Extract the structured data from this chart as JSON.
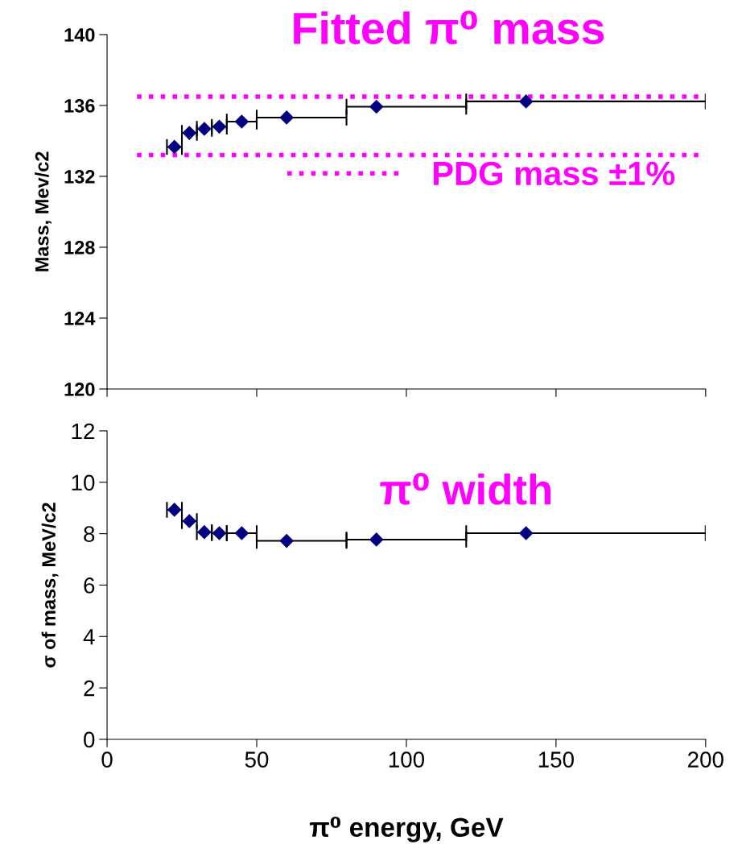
{
  "chart_data": [
    {
      "type": "scatter",
      "title": "Fitted π⁰ mass",
      "ylabel": "Mass, Mev/c2",
      "x": [
        22.5,
        27.5,
        32.5,
        37.5,
        45,
        60,
        90,
        140
      ],
      "series": [
        {
          "color": "#000080",
          "values": [
            133.66,
            134.45,
            134.68,
            134.8,
            135.09,
            135.32,
            135.93,
            136.23
          ],
          "xerrors": [
            [
              20,
              25
            ],
            [
              25,
              30
            ],
            [
              30,
              35
            ],
            [
              35,
              40
            ],
            [
              40,
              50
            ],
            [
              50,
              80
            ],
            [
              80,
              120
            ],
            [
              120,
              200
            ]
          ]
        }
      ],
      "xlim": [
        0,
        200
      ],
      "xticks": [
        0,
        50,
        100,
        150,
        200
      ],
      "ylim": [
        120,
        140
      ],
      "yticks": [
        120,
        124,
        128,
        132,
        136,
        140
      ],
      "ref_lines": [
        {
          "axis": "y",
          "value": 136.5,
          "label": "PDG mass ±1%",
          "color": "#ff00ff",
          "line_style": "dotted"
        },
        {
          "axis": "y",
          "value": 133.2,
          "color": "#ff00ff",
          "line_style": "dotted"
        }
      ],
      "tick_labels": "y",
      "marker": "diamond",
      "grid": false,
      "legend": "center right"
    },
    {
      "type": "scatter",
      "title": "π⁰ width",
      "xlabel": "π⁰ energy, GeV",
      "ylabel": "σ of mass, MeV/c2",
      "x": [
        22.5,
        27.5,
        32.5,
        37.5,
        45,
        60,
        90,
        140
      ],
      "series": [
        {
          "color": "#000080",
          "values": [
            8.93,
            8.49,
            8.06,
            8.02,
            8.02,
            7.72,
            7.77,
            8.02
          ],
          "xerrors": [
            [
              20,
              25
            ],
            [
              25,
              30
            ],
            [
              30,
              35
            ],
            [
              35,
              40
            ],
            [
              40,
              50
            ],
            [
              50,
              80
            ],
            [
              80,
              120
            ],
            [
              120,
              200
            ]
          ]
        }
      ],
      "xlim": [
        0,
        200
      ],
      "xticks": [
        0,
        50,
        100,
        150,
        200
      ],
      "ylim": [
        0,
        12
      ],
      "yticks": [
        0,
        2,
        4,
        6,
        8,
        10,
        12
      ],
      "marker": "diamond",
      "grid": false
    }
  ]
}
